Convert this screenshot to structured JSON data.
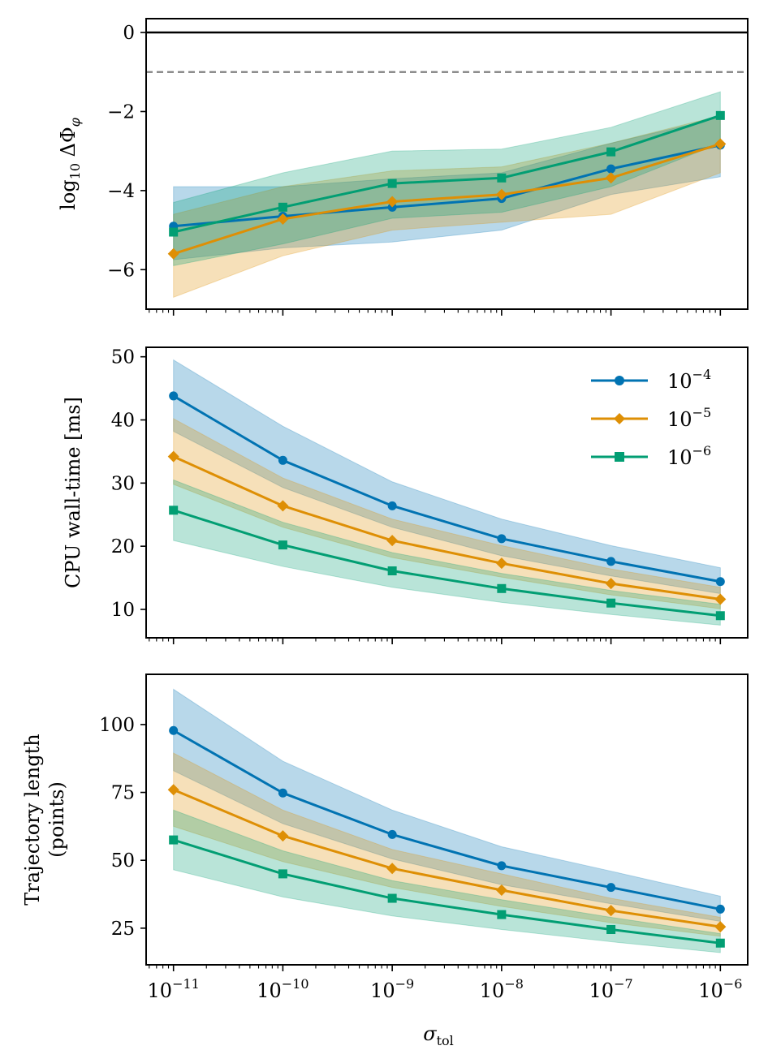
{
  "colors": {
    "s0": "#0173b2",
    "s1": "#de8f05",
    "s2": "#029e73",
    "zero_line": "#000000",
    "ref_line": "#808080"
  },
  "chart_data": [
    {
      "type": "line",
      "ylabel": "log10 ΔΦφ",
      "xscale": "log",
      "xlim": [
        -11.25,
        -5.75
      ],
      "ylim": [
        -7.0,
        0.35
      ],
      "yticks": [
        0,
        -2,
        -4,
        -6
      ],
      "ytick_labels": [
        "0",
        "−2",
        "−4",
        "−6"
      ],
      "hlines": [
        {
          "y": 0,
          "style": "solid",
          "color_key": "zero_line"
        },
        {
          "y": -1,
          "style": "dashed",
          "color_key": "ref_line"
        }
      ],
      "x": [
        -11,
        -10,
        -9,
        -8,
        -7,
        -6
      ],
      "series": [
        {
          "name": "10^-4",
          "marker": "circle",
          "color_key": "s0",
          "values": [
            -4.9,
            -4.65,
            -4.42,
            -4.2,
            -3.45,
            -2.85
          ],
          "lower": [
            -5.75,
            -5.45,
            -5.3,
            -5.0,
            -4.1,
            -3.65
          ],
          "upper": [
            -3.9,
            -3.9,
            -3.7,
            -3.55,
            -2.8,
            -2.15
          ]
        },
        {
          "name": "10^-5",
          "marker": "diamond",
          "color_key": "s1",
          "values": [
            -5.6,
            -4.72,
            -4.28,
            -4.1,
            -3.68,
            -2.82
          ],
          "lower": [
            -6.7,
            -5.65,
            -5.0,
            -4.8,
            -4.6,
            -3.55
          ],
          "upper": [
            -4.6,
            -3.9,
            -3.5,
            -3.4,
            -2.8,
            -2.1
          ]
        },
        {
          "name": "10^-6",
          "marker": "square",
          "color_key": "s2",
          "values": [
            -5.05,
            -4.42,
            -3.82,
            -3.68,
            -3.02,
            -2.1
          ],
          "lower": [
            -5.9,
            -5.35,
            -4.7,
            -4.55,
            -3.9,
            -2.8
          ],
          "upper": [
            -4.3,
            -3.55,
            -3.0,
            -2.95,
            -2.4,
            -1.5
          ]
        }
      ]
    },
    {
      "type": "line",
      "ylabel": "CPU wall-time [ms]",
      "xscale": "log",
      "xlim": [
        -11.25,
        -5.75
      ],
      "ylim": [
        5.5,
        51.5
      ],
      "yticks": [
        10,
        20,
        30,
        40,
        50
      ],
      "ytick_labels": [
        "10",
        "20",
        "30",
        "40",
        "50"
      ],
      "legend": {
        "placement": "top-right",
        "labels": [
          "10",
          "10",
          "10"
        ],
        "exponents": [
          "−4",
          "−5",
          "−6"
        ]
      },
      "x": [
        -11,
        -10,
        -9,
        -8,
        -7,
        -6
      ],
      "series": [
        {
          "name": "10^-4",
          "marker": "circle",
          "color_key": "s0",
          "values": [
            43.8,
            33.6,
            26.4,
            21.2,
            17.6,
            14.4
          ],
          "lower": [
            38.2,
            29.3,
            23.0,
            18.5,
            15.3,
            12.5
          ],
          "upper": [
            49.5,
            39.0,
            30.2,
            24.3,
            20.1,
            16.6
          ]
        },
        {
          "name": "10^-5",
          "marker": "diamond",
          "color_key": "s1",
          "values": [
            34.2,
            26.4,
            20.9,
            17.3,
            14.1,
            11.6
          ],
          "lower": [
            29.8,
            23.0,
            18.2,
            15.1,
            12.3,
            10.1
          ],
          "upper": [
            40.2,
            30.8,
            24.3,
            20.1,
            16.4,
            13.5
          ]
        },
        {
          "name": "10^-6",
          "marker": "square",
          "color_key": "s2",
          "values": [
            25.7,
            20.2,
            16.1,
            13.3,
            11.0,
            9.0
          ],
          "lower": [
            20.9,
            16.8,
            13.5,
            11.1,
            9.2,
            7.5
          ],
          "upper": [
            30.5,
            23.8,
            19.0,
            15.7,
            13.0,
            10.8
          ]
        }
      ]
    },
    {
      "type": "line",
      "ylabel_lines": [
        "Trajectory length",
        "(points)"
      ],
      "xlabel": "σ",
      "xlabel_sub": "tol",
      "xscale": "log",
      "xlim": [
        -11.25,
        -5.75
      ],
      "ylim": [
        11.5,
        118.5
      ],
      "yticks": [
        25,
        50,
        75,
        100
      ],
      "ytick_labels": [
        "25",
        "50",
        "75",
        "100"
      ],
      "xtick_base": "10",
      "xtick_exponents": [
        "−11",
        "−10",
        "−9",
        "−8",
        "−7",
        "−6"
      ],
      "x": [
        -11,
        -10,
        -9,
        -8,
        -7,
        -6
      ],
      "series": [
        {
          "name": "10^-4",
          "marker": "circle",
          "color_key": "s0",
          "values": [
            97.8,
            74.8,
            59.5,
            48.0,
            40.0,
            32.0
          ],
          "lower": [
            83.0,
            63.5,
            50.5,
            41.0,
            34.0,
            27.5
          ],
          "upper": [
            113.0,
            86.5,
            68.5,
            55.0,
            46.0,
            36.8
          ]
        },
        {
          "name": "10^-5",
          "marker": "diamond",
          "color_key": "s1",
          "values": [
            76.0,
            59.0,
            47.0,
            39.0,
            31.5,
            25.5
          ],
          "lower": [
            62.5,
            49.5,
            40.0,
            33.0,
            27.0,
            22.0
          ],
          "upper": [
            89.5,
            68.5,
            54.0,
            45.0,
            36.0,
            29.0
          ]
        },
        {
          "name": "10^-6",
          "marker": "square",
          "color_key": "s2",
          "values": [
            57.5,
            45.0,
            36.0,
            30.0,
            24.5,
            19.5
          ],
          "lower": [
            46.5,
            36.5,
            29.5,
            24.5,
            20.0,
            16.0
          ],
          "upper": [
            68.5,
            53.5,
            42.5,
            35.5,
            29.0,
            23.0
          ]
        }
      ]
    }
  ]
}
